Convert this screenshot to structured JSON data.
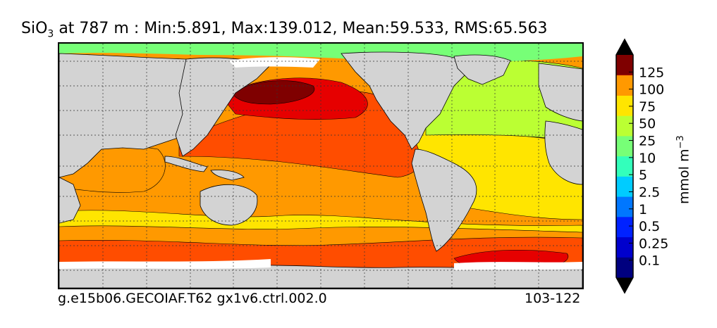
{
  "title": {
    "variable": "SiO",
    "subscript": "3",
    "rest": " at 787 m : Min:5.891, Max:139.012, Mean:59.533, RMS:65.563"
  },
  "footer": {
    "case": "g.e15b06.GECOIAF.T62 gx1v6.ctrl.002.0",
    "years": "103-122"
  },
  "colorbar": {
    "unit_base": "mmol m",
    "unit_exp": "−3",
    "ticks": [
      "0.1",
      "0.25",
      "0.5",
      "1",
      "2.5",
      "5",
      "10",
      "25",
      "50",
      "75",
      "100",
      "125"
    ],
    "colors": [
      "#00007f",
      "#0000cd",
      "#0022ff",
      "#0077ff",
      "#00ccff",
      "#33ffbb",
      "#77ff77",
      "#bbff33",
      "#ffe500",
      "#ff9900",
      "#ff4d00",
      "#e60000",
      "#7f0000"
    ]
  },
  "map": {
    "land_color": "#d3d3d3",
    "ice_color": "#ffffff",
    "grid": true,
    "projection": "global cylindrical, 20°E centered"
  }
}
